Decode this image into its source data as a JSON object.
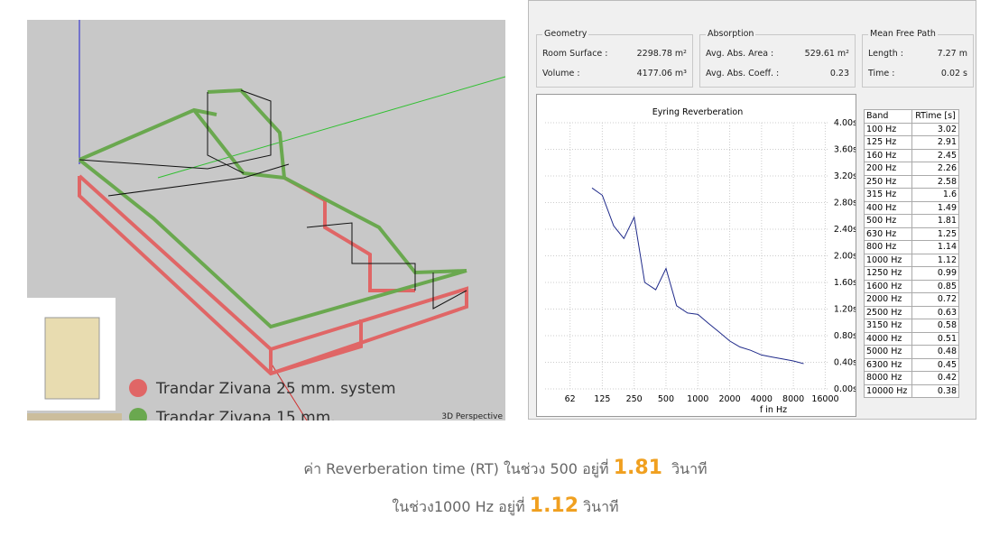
{
  "model_view": {
    "legend": [
      {
        "label": "Trandar Zivana 25 mm. system",
        "color": "#e06666"
      },
      {
        "label": "Trandar Zivana 15 mm.",
        "color": "#6aa84f"
      }
    ],
    "view_label": "3D Perspective"
  },
  "panels": {
    "geometry": {
      "title": "Geometry",
      "rows": [
        [
          "Room Surface :",
          "2298.78 m²"
        ],
        [
          "Volume :",
          "4177.06 m³"
        ]
      ]
    },
    "absorption": {
      "title": "Absorption",
      "rows": [
        [
          "Avg. Abs. Area :",
          "529.61 m²"
        ],
        [
          "Avg. Abs. Coeff. :",
          "0.23"
        ]
      ]
    },
    "mean_free_path": {
      "title": "Mean Free Path",
      "rows": [
        [
          "Length :",
          "7.27 m"
        ],
        [
          "Time :",
          "0.02 s"
        ]
      ]
    }
  },
  "table": {
    "headers": [
      "Band",
      "RTime [s]"
    ],
    "bands": [
      "100 Hz",
      "125 Hz",
      "160 Hz",
      "200 Hz",
      "250 Hz",
      "315 Hz",
      "400 Hz",
      "500 Hz",
      "630 Hz",
      "800 Hz",
      "1000 Hz",
      "1250 Hz",
      "1600 Hz",
      "2000 Hz",
      "2500 Hz",
      "3150 Hz",
      "4000 Hz",
      "5000 Hz",
      "6300 Hz",
      "8000 Hz",
      "10000 Hz"
    ]
  },
  "chart_data": {
    "type": "line",
    "title": "Eyring Reverberation",
    "x_label": "f in Hz",
    "x": [
      100,
      125,
      160,
      200,
      250,
      315,
      400,
      500,
      630,
      800,
      1000,
      1250,
      1600,
      2000,
      2500,
      3150,
      4000,
      5000,
      6300,
      8000,
      10000
    ],
    "values": [
      3.02,
      2.91,
      2.45,
      2.26,
      2.58,
      1.6,
      1.49,
      1.81,
      1.25,
      1.14,
      1.12,
      0.99,
      0.85,
      0.72,
      0.63,
      0.58,
      0.51,
      0.48,
      0.45,
      0.42,
      0.38
    ],
    "color": "#1f2a8a",
    "log_x": true,
    "grid": true,
    "xlim": [
      36,
      17500
    ],
    "ylim": [
      0,
      4
    ],
    "xticks": [
      62,
      125,
      250,
      500,
      1000,
      2000,
      4000,
      8000,
      16000
    ],
    "yticks": [
      {
        "value": 0,
        "label": "0.00s"
      },
      {
        "value": 0.4,
        "label": "0.40s"
      },
      {
        "value": 0.8,
        "label": "0.80s"
      },
      {
        "value": 1.2,
        "label": "1.20s"
      },
      {
        "value": 1.6,
        "label": "1.60s"
      },
      {
        "value": 2,
        "label": "2.00s"
      },
      {
        "value": 2.4,
        "label": "2.40s"
      },
      {
        "value": 2.8,
        "label": "2.80s"
      },
      {
        "value": 3.2,
        "label": "3.20s"
      },
      {
        "value": 3.6,
        "label": "3.60s"
      },
      {
        "value": 4,
        "label": "4.00s"
      }
    ]
  },
  "caption": {
    "line1": [
      "ค่า Reverberation time (RT) ในช่วง 500 อยู่ที่",
      1.81,
      "วินาที"
    ],
    "line2": [
      "ในช่วง1000 Hz  อยู่ที่",
      1.12,
      "วินาที"
    ]
  }
}
